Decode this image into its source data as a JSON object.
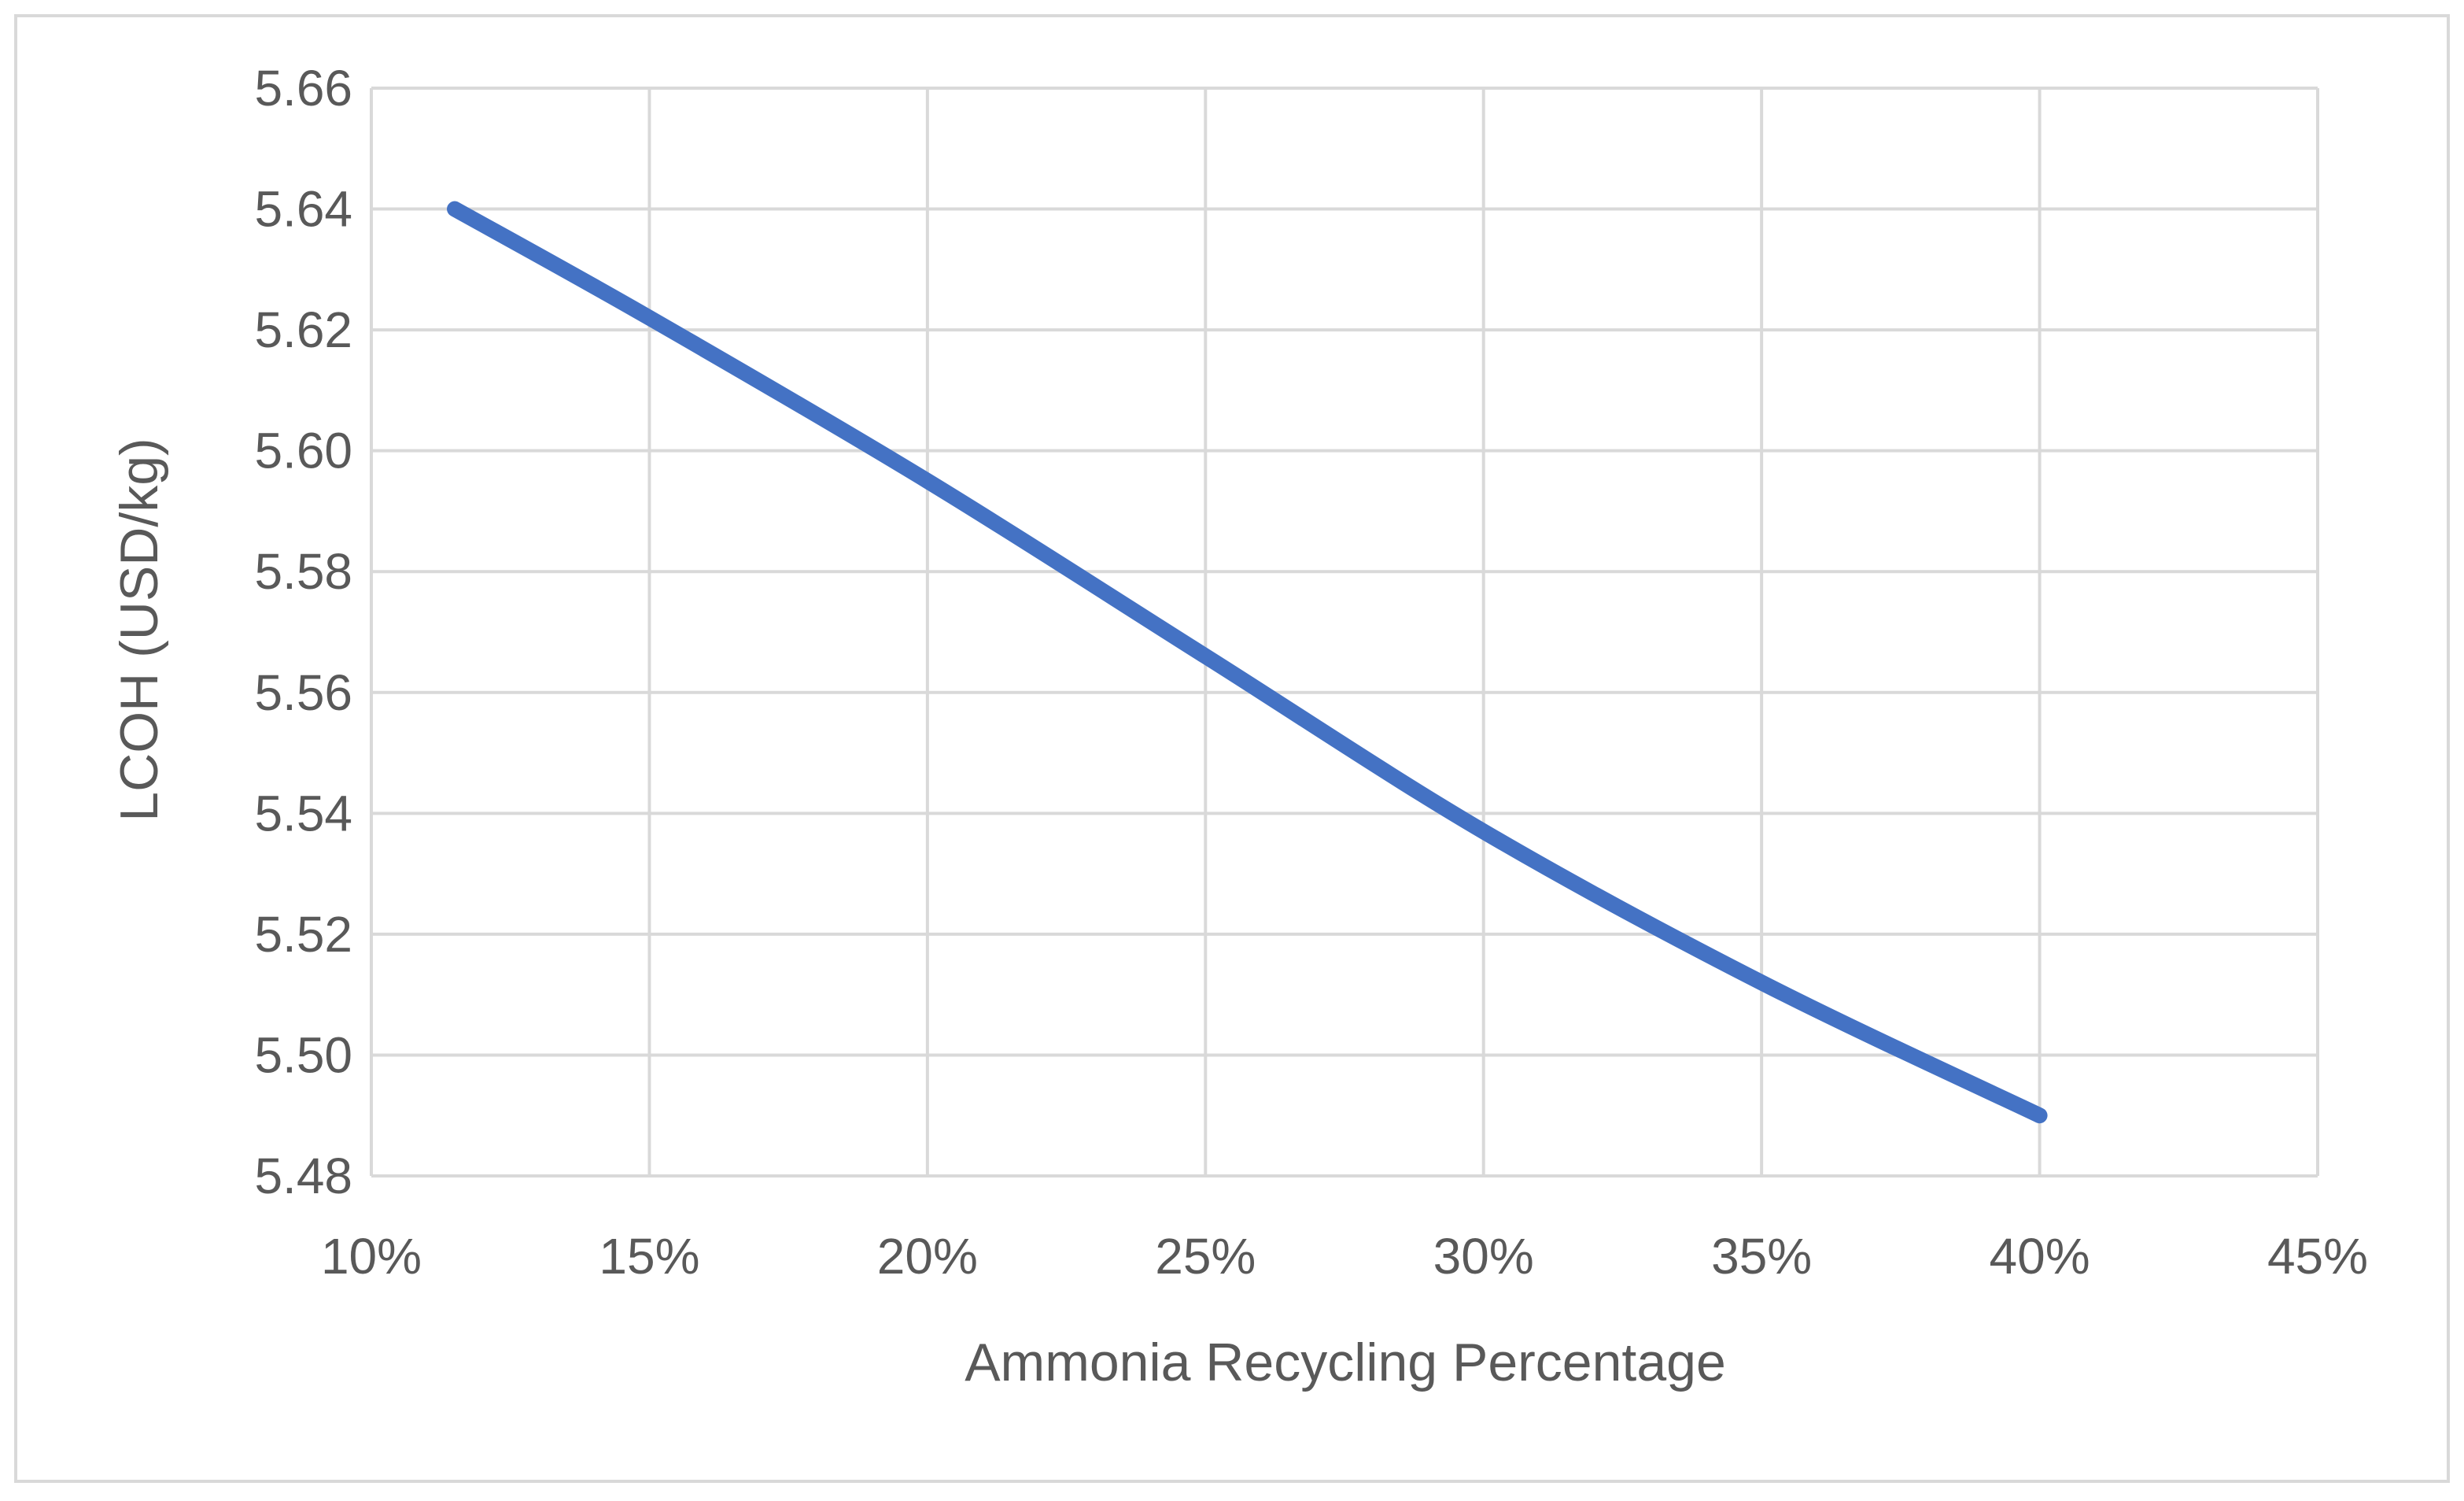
{
  "chart_data": {
    "type": "line",
    "title": "",
    "xlabel": "Ammonia Recycling Percentage",
    "ylabel": "LCOH (USD/kg)",
    "xlim": [
      0.1,
      0.45
    ],
    "ylim": [
      5.48,
      5.66
    ],
    "x_ticks": [
      "10%",
      "15%",
      "20%",
      "25%",
      "30%",
      "35%",
      "40%",
      "45%"
    ],
    "y_ticks": [
      "5.48",
      "5.50",
      "5.52",
      "5.54",
      "5.56",
      "5.58",
      "5.60",
      "5.62",
      "5.64",
      "5.66"
    ],
    "x_tick_values": [
      0.1,
      0.15,
      0.2,
      0.25,
      0.3,
      0.35,
      0.4,
      0.45
    ],
    "y_tick_values": [
      5.48,
      5.5,
      5.52,
      5.54,
      5.56,
      5.58,
      5.6,
      5.62,
      5.64,
      5.66
    ],
    "grid": true,
    "legend": "none",
    "series": [
      {
        "x": [
          0.115,
          0.15,
          0.2,
          0.25,
          0.3,
          0.35,
          0.4
        ],
        "y": [
          5.64,
          5.622,
          5.595,
          5.566,
          5.537,
          5.512,
          5.49
        ],
        "color": "#4472C4"
      }
    ]
  }
}
